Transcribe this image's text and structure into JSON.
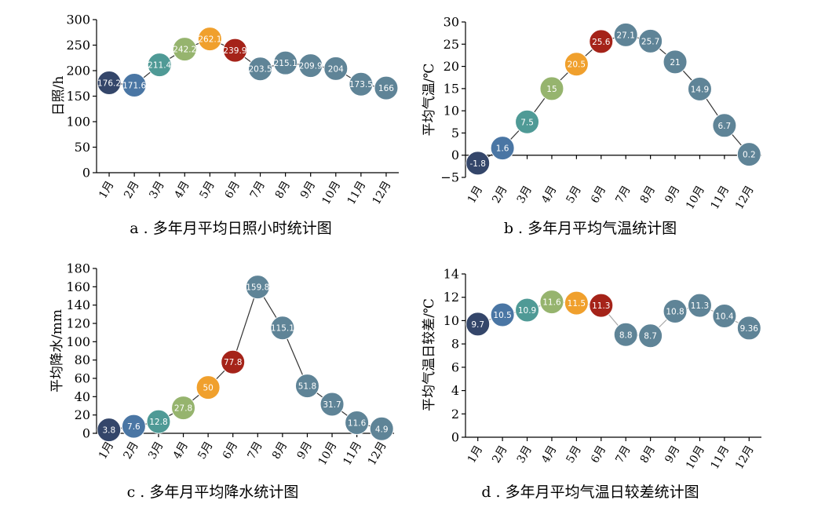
{
  "bubble_colors": [
    "#34466a",
    "#4a76a4",
    "#4f9a96",
    "#96b46e",
    "#f0a02d",
    "#a52319",
    "#5f8497",
    "#5f8497",
    "#5f8497",
    "#5f8497",
    "#5f8497",
    "#5f8497"
  ],
  "chart_data": [
    {
      "type": "line",
      "caption": "a . 多年月平均日照小时统计图",
      "title": "",
      "xlabel": "",
      "ylabel": "日照/h",
      "categories": [
        "1月",
        "2月",
        "3月",
        "4月",
        "5月",
        "6月",
        "7月",
        "8月",
        "9月",
        "10月",
        "11月",
        "12月"
      ],
      "values": [
        176.2,
        171.6,
        211.4,
        242.2,
        262.1,
        239.9,
        203.5,
        215.1,
        209.9,
        204,
        173.5,
        166
      ],
      "labels": [
        "176.2",
        "171.6",
        "211.4",
        "242.2",
        "262.1",
        "239.9",
        "203.5",
        "215.1",
        "209.9",
        "204",
        "173.5",
        "166"
      ],
      "ylim": [
        0,
        300
      ],
      "yticks": [
        "0",
        "50",
        "100",
        "150",
        "200",
        "250",
        "300"
      ],
      "grid": false
    },
    {
      "type": "line",
      "caption": "b . 多年月平均气温统计图",
      "title": "",
      "xlabel": "",
      "ylabel": "平均气温/℃",
      "categories": [
        "1月",
        "2月",
        "3月",
        "4月",
        "5月",
        "6月",
        "7月",
        "8月",
        "9月",
        "10月",
        "11月",
        "12月"
      ],
      "values": [
        -1.8,
        1.6,
        7.5,
        15,
        20.5,
        25.6,
        27.1,
        25.7,
        21,
        14.9,
        6.7,
        0.2
      ],
      "labels": [
        "-1.8",
        "1.6",
        "7.5",
        "15",
        "20.5",
        "25.6",
        "27.1",
        "25.7",
        "21",
        "14.9",
        "6.7",
        "0.2"
      ],
      "ylim": [
        -5,
        30
      ],
      "yticks": [
        "−5",
        "0",
        "5",
        "10",
        "15",
        "20",
        "25",
        "30"
      ],
      "grid": false
    },
    {
      "type": "line",
      "caption": "c . 多年月平均降水统计图",
      "title": "",
      "xlabel": "",
      "ylabel": "平均降水/mm",
      "categories": [
        "1月",
        "2月",
        "3月",
        "4月",
        "5月",
        "6月",
        "7月",
        "8月",
        "9月",
        "10月",
        "11月",
        "12月"
      ],
      "values": [
        3.8,
        7.6,
        12.8,
        27.8,
        50,
        77.8,
        159.8,
        115.1,
        51.8,
        31.7,
        11.6,
        4.9
      ],
      "labels": [
        "3.8",
        "7.6",
        "12.8",
        "27.8",
        "50",
        "77.8",
        "159.8",
        "115.1",
        "51.8",
        "31.7",
        "11.6",
        "4.9"
      ],
      "ylim": [
        0,
        180
      ],
      "yticks": [
        "0",
        "20",
        "40",
        "60",
        "80",
        "100",
        "120",
        "140",
        "160",
        "180"
      ],
      "grid": false
    },
    {
      "type": "line",
      "caption": "d . 多年月平均气温日较差统计图",
      "title": "",
      "xlabel": "",
      "ylabel": "平均气温日较差/℃",
      "categories": [
        "1月",
        "2月",
        "3月",
        "4月",
        "5月",
        "6月",
        "7月",
        "8月",
        "9月",
        "10月",
        "11月",
        "12月"
      ],
      "values": [
        9.7,
        10.5,
        10.9,
        11.6,
        11.5,
        11.3,
        8.8,
        8.7,
        10.8,
        11.3,
        10.4,
        9.36
      ],
      "labels": [
        "9.7",
        "10.5",
        "10.9",
        "11.6",
        "11.5",
        "11.3",
        "8.8",
        "8.7",
        "10.8",
        "11.3",
        "10.4",
        "9.36"
      ],
      "ylim": [
        0,
        14
      ],
      "yticks": [
        "0",
        "2",
        "4",
        "6",
        "8",
        "10",
        "12",
        "14"
      ],
      "grid": false
    }
  ]
}
